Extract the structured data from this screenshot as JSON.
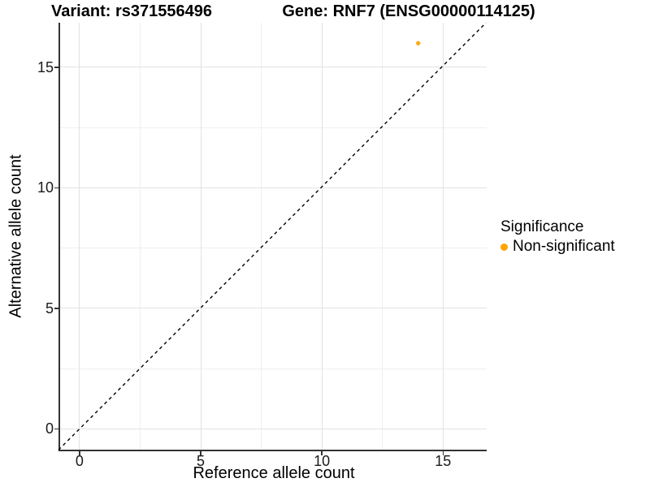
{
  "titles": {
    "left": "Variant: rs371556496",
    "right": "Gene: RNF7 (ENSG00000114125)"
  },
  "axes": {
    "x_title": "Reference allele count",
    "y_title": "Alternative allele count"
  },
  "legend": {
    "title": "Significance",
    "entries": [
      {
        "label": "Non-significant",
        "color": "#FFA500"
      }
    ]
  },
  "colors": {
    "point": "#FFA500",
    "reference_line": "#000000",
    "grid_major": "#e2e2e2",
    "grid_minor": "#efefef",
    "axis_line": "#333333",
    "text": "#000000",
    "background": "#ffffff"
  },
  "chart_data": {
    "type": "scatter",
    "title": "Variant: rs371556496 | Gene: RNF7 (ENSG00000114125)",
    "xlabel": "Reference allele count",
    "ylabel": "Alternative allele count",
    "xlim": [
      -0.84,
      16.8
    ],
    "ylim": [
      -0.87,
      16.85
    ],
    "x_ticks": [
      0,
      5,
      10,
      15
    ],
    "y_ticks": [
      0,
      5,
      10,
      15
    ],
    "x_minor_ticks": [
      2.5,
      7.5,
      12.5
    ],
    "y_minor_ticks": [
      2.5,
      7.5,
      12.5
    ],
    "grid": "major+minor",
    "legend_position": "right",
    "series": [
      {
        "name": "Non-significant",
        "color": "#FFA500",
        "points": [
          {
            "x": 14,
            "y": 16
          }
        ]
      }
    ],
    "reference_line": {
      "equation": "y = x",
      "style": "dashed",
      "color": "#000000"
    }
  }
}
